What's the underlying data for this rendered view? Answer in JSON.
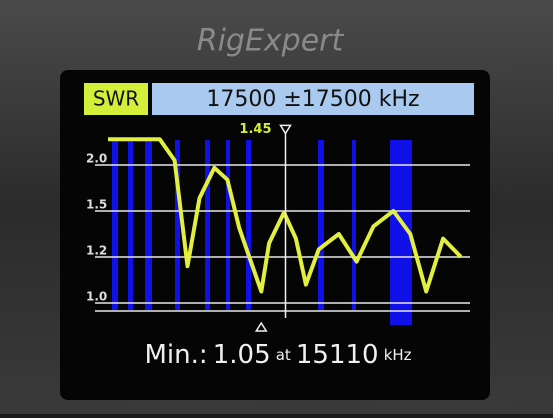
{
  "chart_data": {
    "type": "line",
    "brand": "RigExpert",
    "mode": "SWR",
    "title": "17500 ±17500 kHz",
    "x": [
      0,
      5100,
      6570,
      7840,
      9020,
      10490,
      11770,
      12940,
      15110,
      15880,
      17350,
      18530,
      19510,
      20780,
      22750,
      24510,
      26180,
      28140,
      29800,
      31370,
      33040,
      34800
    ],
    "values": [
      2.28,
      2.28,
      2.05,
      1.16,
      1.64,
      1.97,
      1.84,
      1.39,
      1.05,
      1.29,
      1.49,
      1.32,
      1.08,
      1.25,
      1.35,
      1.18,
      1.4,
      1.5,
      1.35,
      1.05,
      1.32,
      1.2
    ],
    "color": "#e2ef3e",
    "xlim": [
      0,
      35000
    ],
    "ylim": [
      1.0,
      2.3
    ],
    "yticks": [
      {
        "value": 1,
        "label": "1.0"
      },
      1.2,
      1.5,
      {
        "value": 2,
        "label": "2.0"
      }
    ],
    "grid": true,
    "cursor": {
      "x": 17500,
      "value": 1.45
    },
    "min": {
      "label": "Min.:",
      "value": 1.05,
      "at": "at",
      "x": 15110,
      "unit": "kHz"
    }
  }
}
